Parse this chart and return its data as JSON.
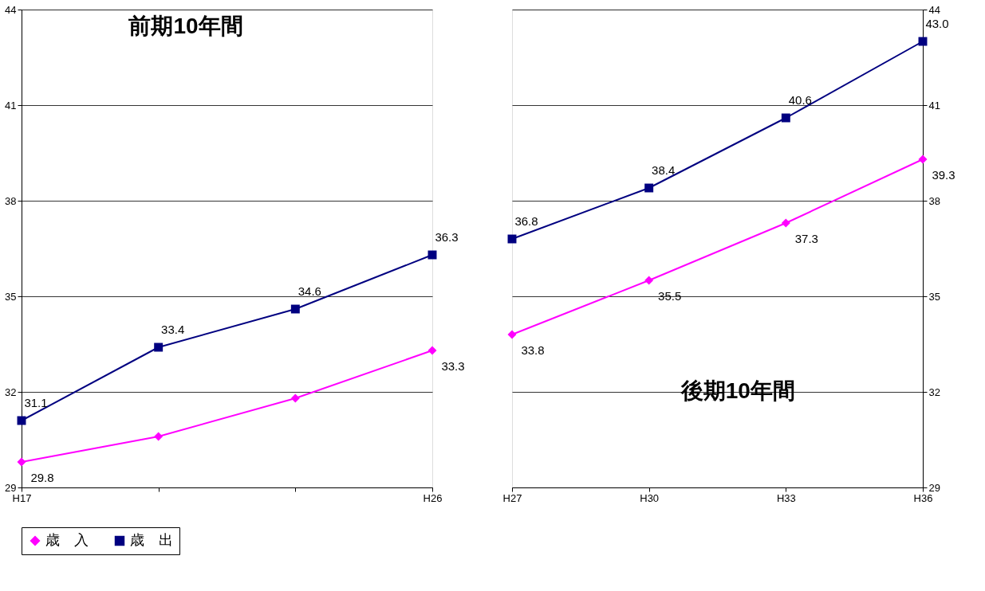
{
  "chart_data": [
    {
      "type": "line",
      "title": "前期10年間",
      "categories": [
        "H17",
        null,
        null,
        "H26"
      ],
      "ylim": [
        29,
        44
      ],
      "yticks": [
        29,
        32,
        35,
        38,
        41,
        44
      ],
      "grid": "y",
      "legend": "bottom",
      "tick_labels": "y",
      "series": [
        {
          "name": "歳　入",
          "color": "#ff00ff",
          "marker": "diamond",
          "values": [
            29.8,
            30.6,
            31.8,
            33.3
          ],
          "value_labels": [
            "29.8",
            null,
            null,
            "33.3"
          ]
        },
        {
          "name": "歳　出",
          "color": "#000080",
          "marker": "square",
          "values": [
            31.1,
            33.4,
            34.6,
            36.3
          ],
          "value_labels": [
            "31.1",
            "33.4",
            "34.6",
            "36.3"
          ]
        }
      ]
    },
    {
      "type": "line",
      "title": "後期10年間",
      "categories": [
        "H27",
        "H30",
        "H33",
        "H36"
      ],
      "ylim": [
        29,
        44
      ],
      "yticks": [
        29,
        32,
        35,
        38,
        41,
        44
      ],
      "grid": "y",
      "legend": false,
      "series": [
        {
          "color": "#ff00ff",
          "marker": "diamond",
          "values": [
            33.8,
            35.5,
            37.3,
            39.3
          ],
          "value_labels": [
            "33.8",
            "35.5",
            "37.3",
            "39.3"
          ]
        },
        {
          "color": "#000080",
          "marker": "square",
          "values": [
            36.8,
            38.4,
            40.6,
            43.0
          ],
          "value_labels": [
            "36.8",
            "38.4",
            "40.6",
            "43.0"
          ]
        }
      ]
    }
  ]
}
